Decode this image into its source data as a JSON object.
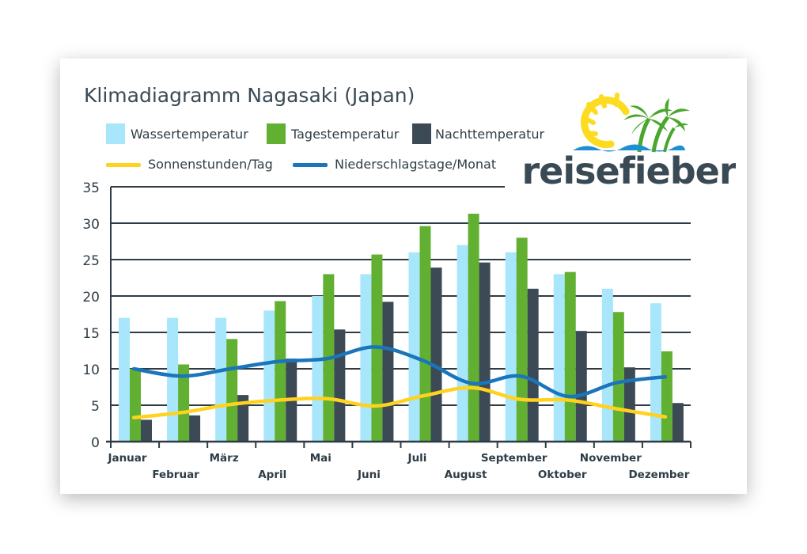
{
  "chart_data": {
    "type": "bar",
    "title": "Klimadiagramm Nagasaki (Japan)",
    "categories": [
      "Januar",
      "Februar",
      "März",
      "April",
      "Mai",
      "Juni",
      "Juli",
      "August",
      "September",
      "Oktober",
      "November",
      "Dezember"
    ],
    "bar_series": [
      {
        "name": "Wassertemperatur",
        "color": "#a8e6fb",
        "values": [
          17,
          17,
          17,
          18,
          20,
          23,
          26,
          27,
          26,
          23,
          21,
          19
        ]
      },
      {
        "name": "Tagestemperatur",
        "color": "#62b032",
        "values": [
          10,
          10.6,
          14.1,
          19.3,
          23,
          25.7,
          29.6,
          31.3,
          28,
          23.3,
          17.8,
          12.4
        ]
      },
      {
        "name": "Nachttemperatur",
        "color": "#3b4a54",
        "values": [
          3,
          3.6,
          6.4,
          11.4,
          15.4,
          19.2,
          23.9,
          24.6,
          21,
          15.2,
          10.2,
          5.3
        ]
      }
    ],
    "line_series": [
      {
        "name": "Sonnenstunden/Tag",
        "color": "#ffd21f",
        "values": [
          3.3,
          4,
          5.1,
          5.7,
          5.9,
          4.9,
          6.3,
          7.4,
          5.8,
          5.7,
          4.5,
          3.4
        ]
      },
      {
        "name": "Niederschlagstage/Monat",
        "color": "#1b75bb",
        "values": [
          10,
          9,
          10,
          11,
          11.4,
          13,
          11.1,
          8,
          9,
          6.2,
          8.1,
          8.9
        ]
      }
    ],
    "ylim": [
      0,
      35
    ],
    "yticks": [
      0,
      5,
      10,
      15,
      20,
      25,
      30,
      35
    ],
    "grid": true,
    "legend_position": "top-left"
  },
  "logo": {
    "text": "reisefieber",
    "sun_color": "#fddb1f",
    "palm_color": "#4aa72e",
    "wave_color": "#1e8fd0",
    "text_color": "#3a4a55"
  }
}
